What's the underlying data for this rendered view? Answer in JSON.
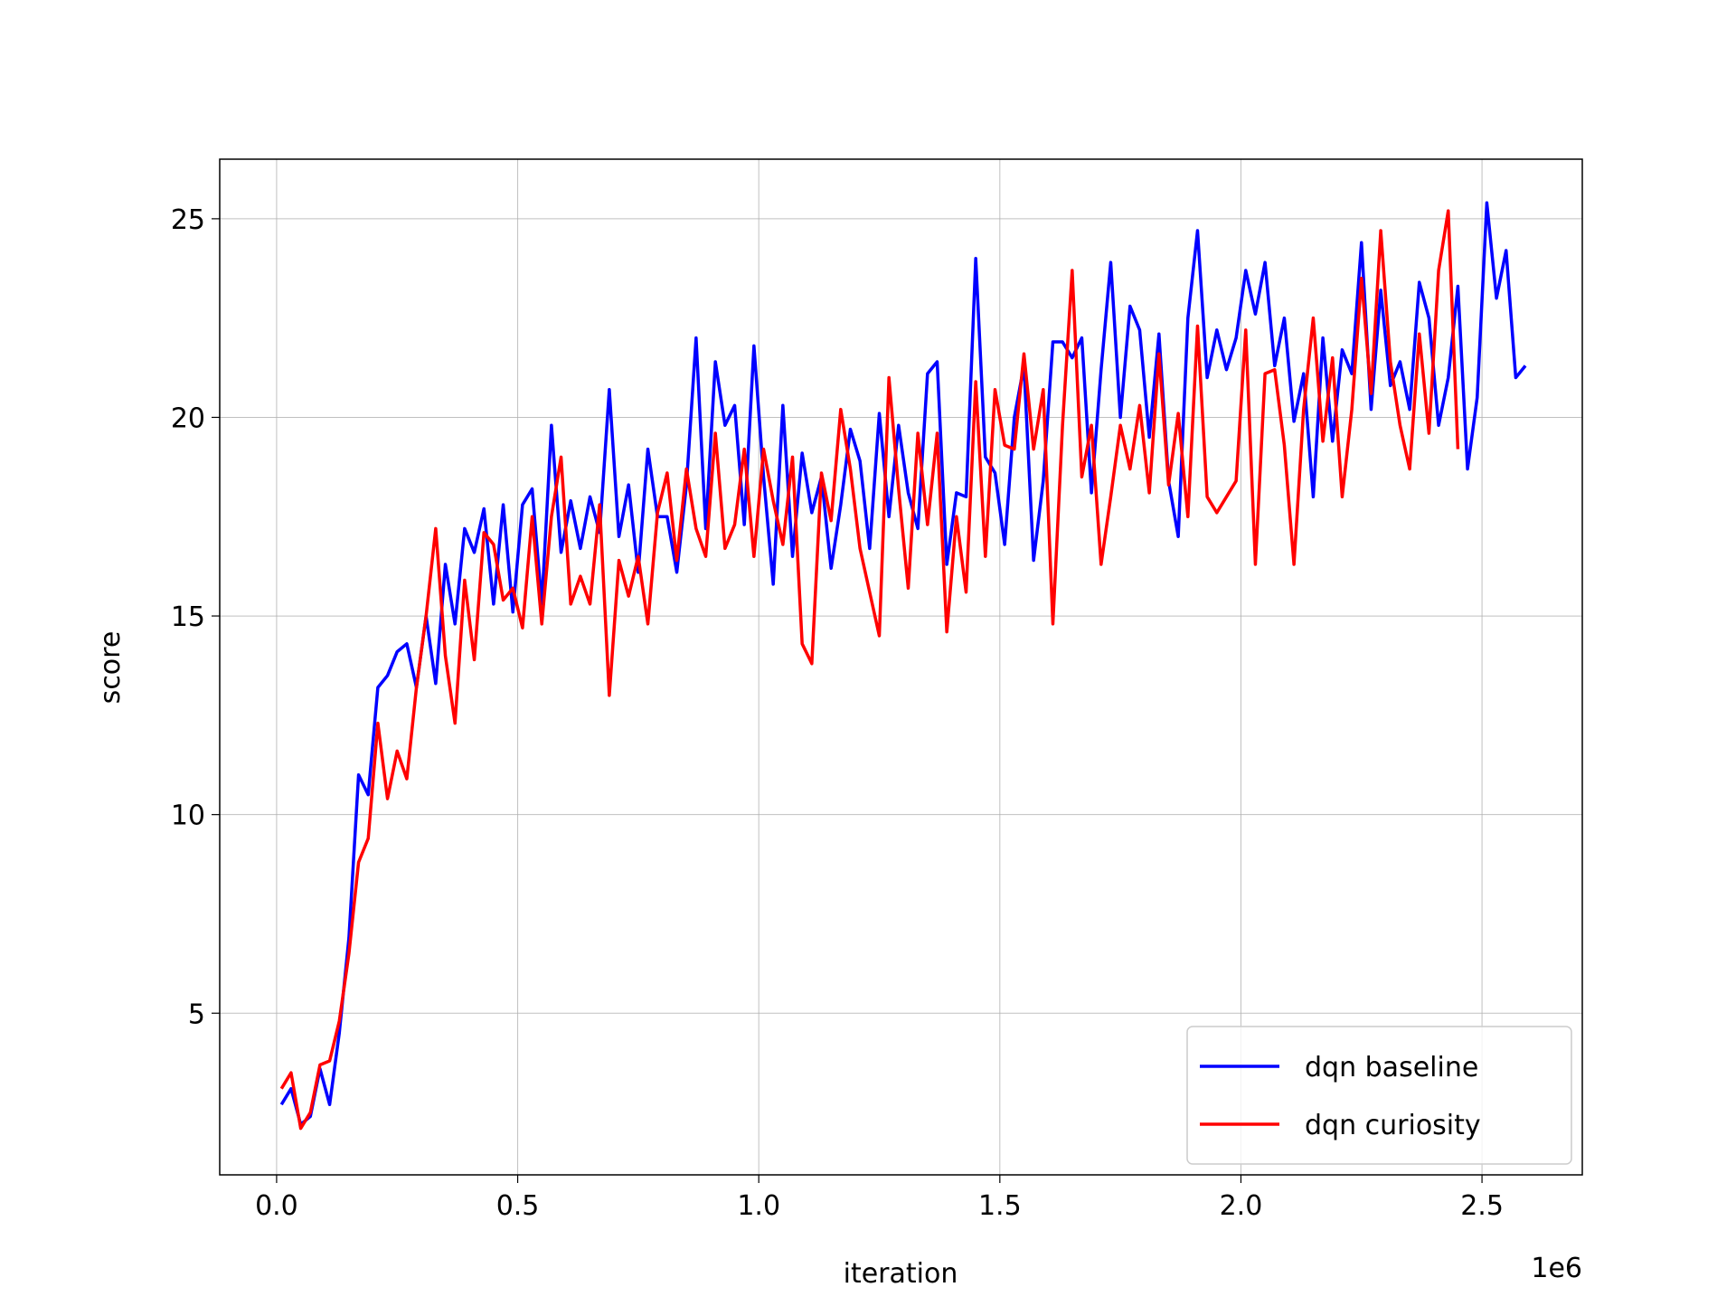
{
  "chart_data": {
    "type": "line",
    "x_label": "iteration",
    "y_label": "score",
    "x_offset_text": "1e6",
    "xlim": [
      -118000,
      2708000
    ],
    "ylim": [
      0.93,
      26.5
    ],
    "xticks": [
      {
        "value": 0,
        "label": "0.0"
      },
      {
        "value": 500000,
        "label": "0.5"
      },
      {
        "value": 1000000,
        "label": "1.0"
      },
      {
        "value": 1500000,
        "label": "1.5"
      },
      {
        "value": 2000000,
        "label": "2.0"
      },
      {
        "value": 2500000,
        "label": "2.5"
      }
    ],
    "yticks": [
      5,
      10,
      15,
      20,
      25
    ],
    "grid": true,
    "legend_position": "lower right",
    "series": [
      {
        "name": "dqn baseline",
        "color": "#0000ff",
        "x": [
          10000,
          30000,
          50000,
          70000,
          90000,
          110000,
          130000,
          150000,
          170000,
          190000,
          210000,
          230000,
          250000,
          270000,
          290000,
          310000,
          330000,
          350000,
          370000,
          390000,
          410000,
          430000,
          450000,
          470000,
          490000,
          510000,
          530000,
          550000,
          570000,
          590000,
          610000,
          630000,
          650000,
          670000,
          690000,
          710000,
          730000,
          750000,
          770000,
          790000,
          810000,
          830000,
          850000,
          870000,
          890000,
          910000,
          930000,
          950000,
          970000,
          990000,
          1010000,
          1030000,
          1050000,
          1070000,
          1090000,
          1110000,
          1130000,
          1150000,
          1170000,
          1190000,
          1210000,
          1230000,
          1250000,
          1270000,
          1290000,
          1310000,
          1330000,
          1350000,
          1370000,
          1390000,
          1410000,
          1430000,
          1450000,
          1470000,
          1490000,
          1510000,
          1530000,
          1550000,
          1570000,
          1590000,
          1610000,
          1630000,
          1650000,
          1670000,
          1690000,
          1710000,
          1730000,
          1750000,
          1770000,
          1790000,
          1810000,
          1830000,
          1850000,
          1870000,
          1890000,
          1910000,
          1930000,
          1950000,
          1970000,
          1990000,
          2010000,
          2030000,
          2050000,
          2070000,
          2090000,
          2110000,
          2130000,
          2150000,
          2170000,
          2190000,
          2210000,
          2230000,
          2250000,
          2270000,
          2290000,
          2310000,
          2330000,
          2350000,
          2370000,
          2390000,
          2410000,
          2430000,
          2450000,
          2470000,
          2490000,
          2510000,
          2530000,
          2550000,
          2570000,
          2590000
        ],
        "values": [
          2.7,
          3.1,
          2.2,
          2.4,
          3.6,
          2.7,
          4.5,
          6.9,
          11.0,
          10.5,
          13.2,
          13.5,
          14.1,
          14.3,
          13.2,
          15.0,
          13.3,
          16.3,
          14.8,
          17.2,
          16.6,
          17.7,
          15.3,
          17.8,
          15.1,
          17.8,
          18.2,
          15.3,
          19.8,
          16.6,
          17.9,
          16.7,
          18.0,
          17.1,
          20.7,
          17.0,
          18.3,
          16.1,
          19.2,
          17.5,
          17.5,
          16.1,
          18.3,
          22.0,
          17.2,
          21.4,
          19.8,
          20.3,
          17.3,
          21.8,
          18.5,
          15.8,
          20.3,
          16.5,
          19.1,
          17.6,
          18.5,
          16.2,
          17.8,
          19.7,
          18.9,
          16.7,
          20.1,
          17.5,
          19.8,
          18.1,
          17.2,
          21.1,
          21.4,
          16.3,
          18.1,
          18.0,
          24.0,
          19.0,
          18.6,
          16.8,
          20.0,
          21.3,
          16.4,
          18.4,
          21.9,
          21.9,
          21.5,
          22.0,
          18.1,
          21.2,
          23.9,
          20.0,
          22.8,
          22.2,
          19.5,
          22.1,
          18.4,
          17.0,
          22.5,
          24.7,
          21.0,
          22.2,
          21.2,
          22.0,
          23.7,
          22.6,
          23.9,
          21.3,
          22.5,
          19.9,
          21.1,
          18.0,
          22.0,
          19.4,
          21.7,
          21.1,
          24.4,
          20.2,
          23.2,
          20.8,
          21.4,
          20.2,
          23.4,
          22.5,
          19.8,
          21.0,
          23.3,
          18.7,
          20.5,
          25.4,
          23.0,
          24.2,
          21.0,
          21.3
        ]
      },
      {
        "name": "dqn curiosity",
        "color": "#ff0000",
        "x": [
          10000,
          30000,
          50000,
          70000,
          90000,
          110000,
          130000,
          150000,
          170000,
          190000,
          210000,
          230000,
          250000,
          270000,
          290000,
          310000,
          330000,
          350000,
          370000,
          390000,
          410000,
          430000,
          450000,
          470000,
          490000,
          510000,
          530000,
          550000,
          570000,
          590000,
          610000,
          630000,
          650000,
          670000,
          690000,
          710000,
          730000,
          750000,
          770000,
          790000,
          810000,
          830000,
          850000,
          870000,
          890000,
          910000,
          930000,
          950000,
          970000,
          990000,
          1010000,
          1030000,
          1050000,
          1070000,
          1090000,
          1110000,
          1130000,
          1150000,
          1170000,
          1190000,
          1210000,
          1230000,
          1250000,
          1270000,
          1290000,
          1310000,
          1330000,
          1350000,
          1370000,
          1390000,
          1410000,
          1430000,
          1450000,
          1470000,
          1490000,
          1510000,
          1530000,
          1550000,
          1570000,
          1590000,
          1610000,
          1630000,
          1650000,
          1670000,
          1690000,
          1710000,
          1730000,
          1750000,
          1770000,
          1790000,
          1810000,
          1830000,
          1850000,
          1870000,
          1890000,
          1910000,
          1930000,
          1950000,
          1970000,
          1990000,
          2010000,
          2030000,
          2050000,
          2070000,
          2090000,
          2110000,
          2130000,
          2150000,
          2170000,
          2190000,
          2210000,
          2230000,
          2250000,
          2270000,
          2290000,
          2310000,
          2330000,
          2350000,
          2370000,
          2390000,
          2410000,
          2430000,
          2450000
        ],
        "values": [
          3.1,
          3.5,
          2.1,
          2.5,
          3.7,
          3.8,
          4.8,
          6.5,
          8.8,
          9.4,
          12.3,
          10.4,
          11.6,
          10.9,
          13.2,
          15.0,
          17.2,
          14.0,
          12.3,
          15.9,
          13.9,
          17.1,
          16.8,
          15.4,
          15.7,
          14.7,
          17.5,
          14.8,
          17.5,
          19.0,
          15.3,
          16.0,
          15.3,
          17.8,
          13.0,
          16.4,
          15.5,
          16.5,
          14.8,
          17.6,
          18.6,
          16.4,
          18.7,
          17.2,
          16.5,
          19.6,
          16.7,
          17.3,
          19.2,
          16.5,
          19.2,
          17.9,
          16.8,
          19.0,
          14.3,
          13.8,
          18.6,
          17.4,
          20.2,
          18.7,
          16.7,
          15.6,
          14.5,
          21.0,
          18.2,
          15.7,
          19.6,
          17.3,
          19.6,
          14.6,
          17.5,
          15.6,
          20.9,
          16.5,
          20.7,
          19.3,
          19.2,
          21.6,
          19.2,
          20.7,
          14.8,
          19.8,
          23.7,
          18.5,
          19.8,
          16.3,
          18.0,
          19.8,
          18.7,
          20.3,
          18.1,
          21.6,
          18.3,
          20.1,
          17.5,
          22.3,
          18.0,
          17.6,
          18.0,
          18.4,
          22.2,
          16.3,
          21.1,
          21.2,
          19.3,
          16.3,
          20.2,
          22.5,
          19.4,
          21.5,
          18.0,
          20.2,
          23.5,
          20.6,
          24.7,
          21.4,
          19.8,
          18.7,
          22.1,
          19.6,
          23.7,
          25.2,
          19.2
        ]
      }
    ]
  }
}
